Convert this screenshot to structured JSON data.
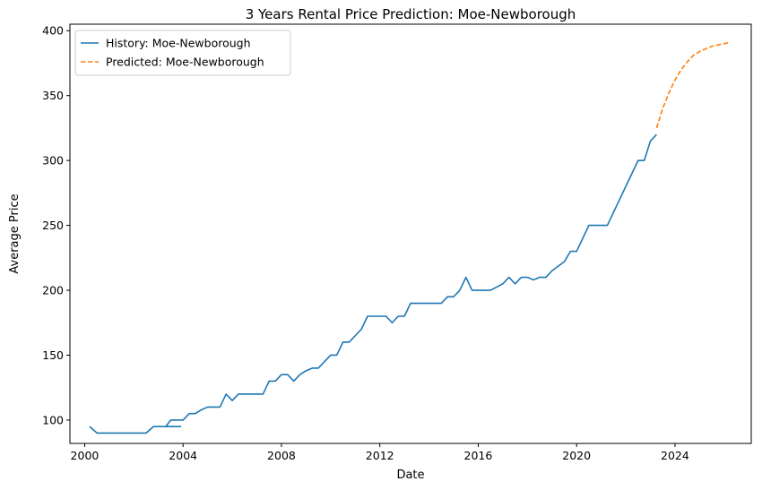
{
  "chart_data": {
    "type": "line",
    "title": "3 Years Rental Price Prediction: Moe-Newborough",
    "xlabel": "Date",
    "ylabel": "Average Price",
    "xlim": [
      1999.4,
      2027.1
    ],
    "ylim": [
      82,
      405
    ],
    "x_ticks": [
      2000,
      2004,
      2008,
      2012,
      2016,
      2020,
      2024
    ],
    "y_ticks": [
      100,
      150,
      200,
      250,
      300,
      350,
      400
    ],
    "grid": false,
    "legend_position": "top-left",
    "series": [
      {
        "name": "History: Moe-Newborough",
        "color": "#1f77b4",
        "style": "solid",
        "points": [
          [
            2000.2,
            95
          ],
          [
            2000.5,
            90
          ],
          [
            2001.0,
            90
          ],
          [
            2001.5,
            90
          ],
          [
            2002.0,
            90
          ],
          [
            2002.5,
            90
          ],
          [
            2002.8,
            95
          ],
          [
            2003.0,
            95
          ],
          [
            2003.3,
            95
          ],
          [
            2003.5,
            95
          ],
          [
            2003.75,
            95
          ],
          [
            2003.9,
            95
          ],
          [
            2003.6,
            95
          ],
          [
            2003.3,
            95
          ],
          [
            2003.5,
            100
          ],
          [
            2003.75,
            100
          ],
          [
            2004.0,
            100
          ],
          [
            2004.25,
            105
          ],
          [
            2004.5,
            105
          ],
          [
            2004.75,
            108
          ],
          [
            2005.0,
            110
          ],
          [
            2005.25,
            110
          ],
          [
            2005.5,
            110
          ],
          [
            2005.75,
            120
          ],
          [
            2006.0,
            115
          ],
          [
            2006.25,
            120
          ],
          [
            2006.5,
            120
          ],
          [
            2006.75,
            120
          ],
          [
            2007.0,
            120
          ],
          [
            2007.25,
            120
          ],
          [
            2007.5,
            130
          ],
          [
            2007.75,
            130
          ],
          [
            2008.0,
            135
          ],
          [
            2008.25,
            135
          ],
          [
            2008.5,
            130
          ],
          [
            2008.75,
            135
          ],
          [
            2009.0,
            138
          ],
          [
            2009.25,
            140
          ],
          [
            2009.5,
            140
          ],
          [
            2009.75,
            145
          ],
          [
            2010.0,
            150
          ],
          [
            2010.25,
            150
          ],
          [
            2010.5,
            160
          ],
          [
            2010.75,
            160
          ],
          [
            2011.0,
            165
          ],
          [
            2011.25,
            170
          ],
          [
            2011.5,
            180
          ],
          [
            2011.75,
            180
          ],
          [
            2012.0,
            180
          ],
          [
            2012.25,
            180
          ],
          [
            2012.5,
            175
          ],
          [
            2012.75,
            180
          ],
          [
            2013.0,
            180
          ],
          [
            2013.25,
            190
          ],
          [
            2013.5,
            190
          ],
          [
            2014.0,
            190
          ],
          [
            2014.5,
            190
          ],
          [
            2014.75,
            195
          ],
          [
            2015.0,
            195
          ],
          [
            2015.25,
            200
          ],
          [
            2015.5,
            210
          ],
          [
            2015.75,
            200
          ],
          [
            2016.0,
            200
          ],
          [
            2016.5,
            200
          ],
          [
            2017.0,
            205
          ],
          [
            2017.25,
            210
          ],
          [
            2017.5,
            205
          ],
          [
            2017.75,
            210
          ],
          [
            2018.0,
            210
          ],
          [
            2018.25,
            208
          ],
          [
            2018.5,
            210
          ],
          [
            2018.75,
            210
          ],
          [
            2019.0,
            215
          ],
          [
            2019.5,
            222
          ],
          [
            2019.75,
            230
          ],
          [
            2020.0,
            230
          ],
          [
            2020.5,
            250
          ],
          [
            2021.0,
            250
          ],
          [
            2021.25,
            250
          ],
          [
            2022.5,
            300
          ],
          [
            2022.75,
            300
          ],
          [
            2023.0,
            315
          ],
          [
            2023.25,
            320
          ]
        ]
      },
      {
        "name": "Predicted: Moe-Newborough",
        "color": "#ff7f0e",
        "style": "dashed",
        "points": [
          [
            2023.25,
            325
          ],
          [
            2023.5,
            340
          ],
          [
            2023.75,
            352
          ],
          [
            2024.0,
            362
          ],
          [
            2024.25,
            370
          ],
          [
            2024.5,
            376
          ],
          [
            2024.75,
            381
          ],
          [
            2025.0,
            384
          ],
          [
            2025.25,
            386
          ],
          [
            2025.5,
            388
          ],
          [
            2025.75,
            389
          ],
          [
            2026.0,
            390
          ],
          [
            2026.25,
            391
          ]
        ]
      }
    ]
  }
}
